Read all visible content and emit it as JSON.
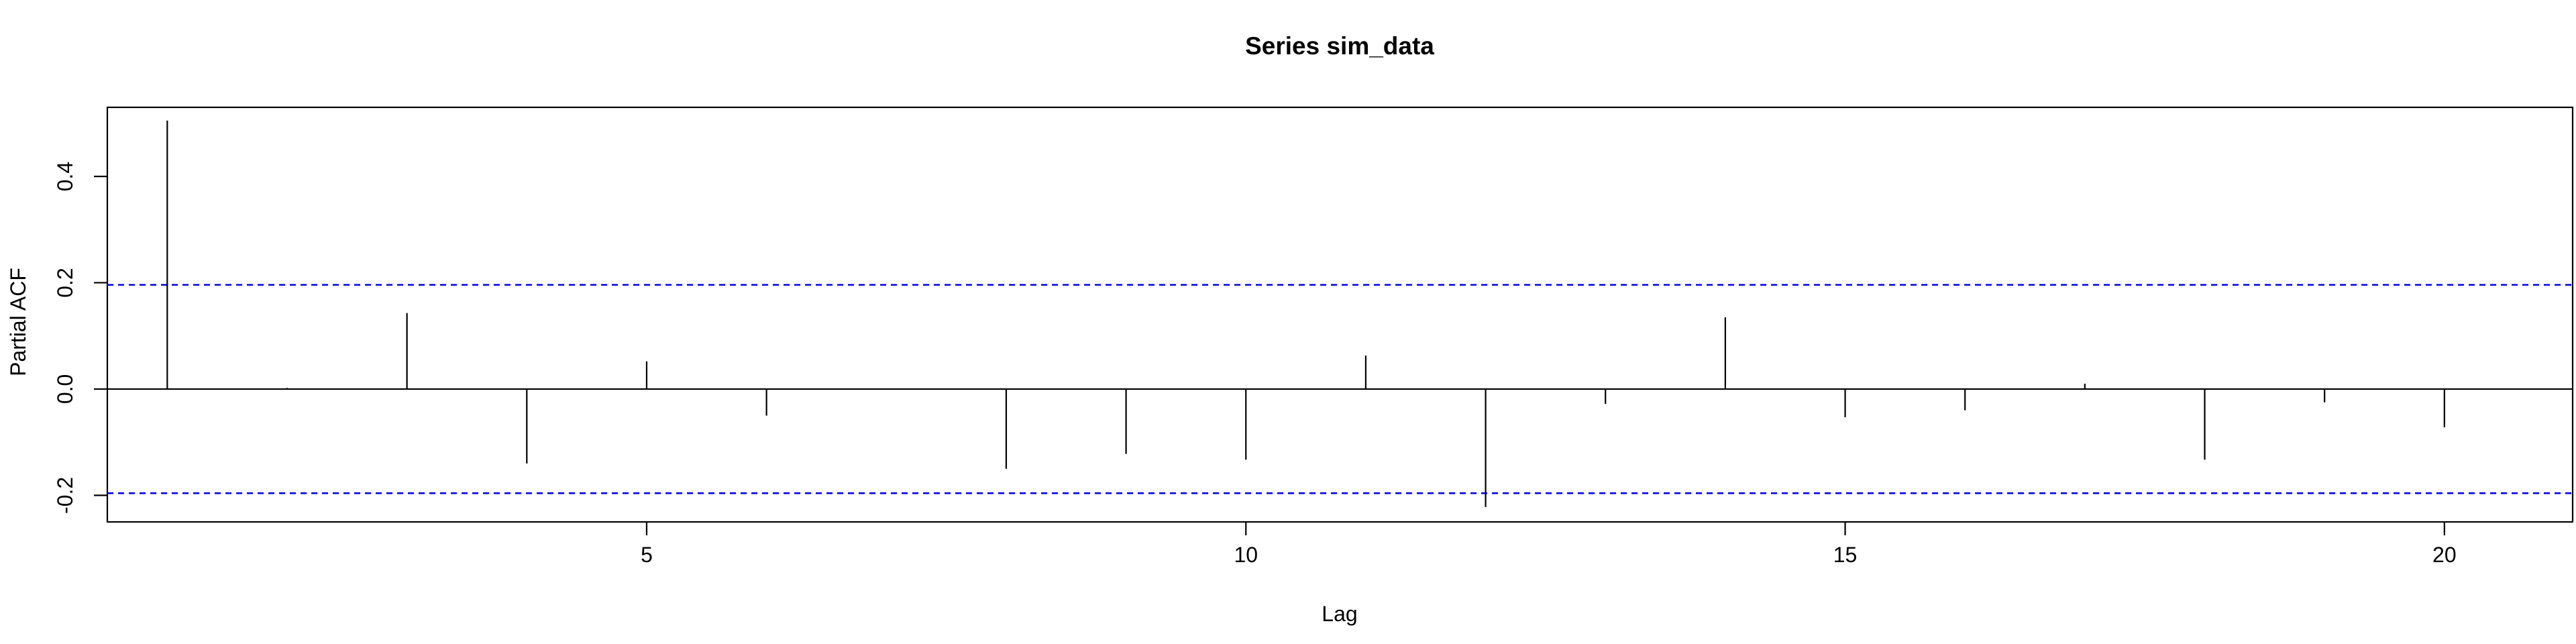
{
  "chart_data": {
    "type": "bar",
    "title": "Series  sim_data",
    "xlabel": "Lag",
    "ylabel": "Partial ACF",
    "x": [
      1,
      2,
      3,
      4,
      5,
      6,
      7,
      8,
      9,
      10,
      11,
      12,
      13,
      14,
      15,
      16,
      17,
      18,
      19,
      20
    ],
    "values": [
      0.505,
      0.002,
      0.143,
      -0.14,
      0.052,
      -0.05,
      0.0,
      -0.15,
      -0.122,
      -0.133,
      0.063,
      -0.222,
      -0.028,
      0.135,
      -0.053,
      -0.04,
      0.01,
      -0.133,
      -0.025,
      -0.072
    ],
    "confidence_bound": 0.196,
    "xlim": [
      0.5,
      21.07
    ],
    "ylim": [
      -0.25,
      0.53
    ],
    "x_ticks": [
      5,
      10,
      15,
      20
    ],
    "y_ticks": [
      -0.2,
      0.0,
      0.2,
      0.4
    ],
    "x_tick_labels": [
      "5",
      "10",
      "15",
      "20"
    ],
    "y_tick_labels": [
      "-0.2",
      "0.0",
      "0.2",
      "0.4"
    ],
    "grid": false,
    "zero_line": true,
    "colors": {
      "bars": "#000000",
      "confidence": "#0000ff",
      "axes": "#000000",
      "background": "#ffffff"
    }
  }
}
